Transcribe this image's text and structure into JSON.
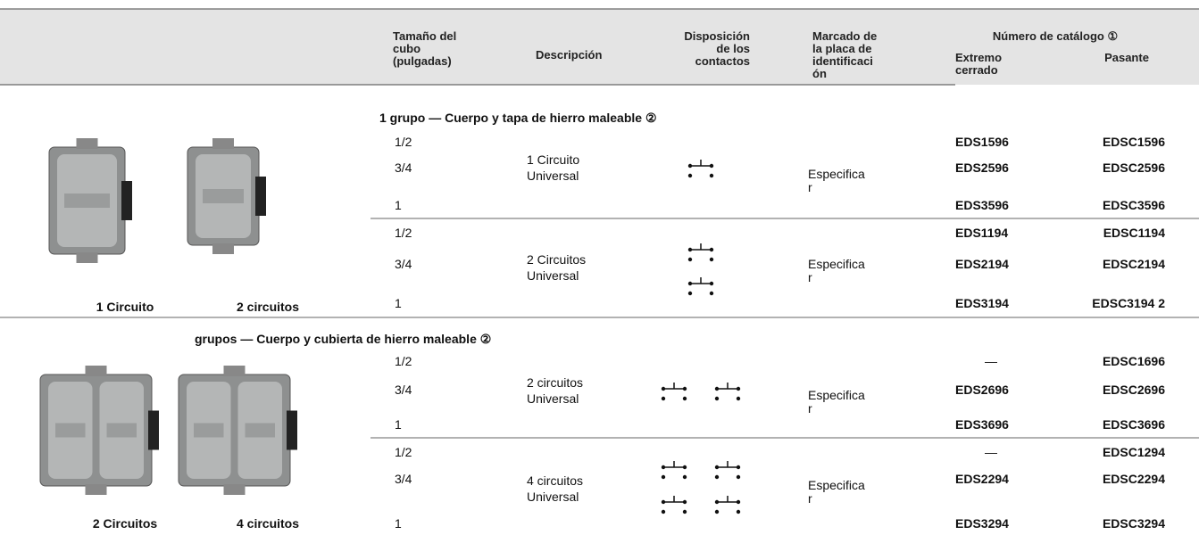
{
  "header": {
    "hub_size": [
      "Tamaño del",
      "cubo",
      "(pulgadas)"
    ],
    "description": "Descripción",
    "contacts": [
      "Disposición",
      "de los",
      "contactos"
    ],
    "marking": [
      "Marcado de",
      "la placa de",
      "identificaci",
      "ón"
    ],
    "catalog": "Número de catálogo ①",
    "closed": [
      "Extremo",
      "cerrado"
    ],
    "through": "Pasante"
  },
  "images": [
    {
      "caption": "1 Circuito"
    },
    {
      "caption": "2 circuitos"
    },
    {
      "caption": "2 Circuitos"
    },
    {
      "caption": "4 circuitos"
    }
  ],
  "groups": [
    {
      "title": "1 grupo — Cuerpo y tapa de hierro maleable ②",
      "sections": [
        {
          "description": [
            "1 Circuito",
            "Universal"
          ],
          "marking": [
            "Especifica",
            "r"
          ],
          "rows": [
            {
              "size": "1/2",
              "closed": "EDS1596",
              "through": "EDSC1596"
            },
            {
              "size": "3/4",
              "closed": "EDS2596",
              "through": "EDSC2596"
            },
            {
              "size": "1",
              "closed": "EDS3596",
              "through": "EDSC3596"
            }
          ]
        },
        {
          "description": [
            "2 Circuitos",
            "Universal"
          ],
          "marking": [
            "Especifica",
            "r"
          ],
          "rows": [
            {
              "size": "1/2",
              "closed": "EDS1194",
              "through": "EDSC1194"
            },
            {
              "size": "3/4",
              "closed": "EDS2194",
              "through": "EDSC2194"
            },
            {
              "size": "1",
              "closed": "EDS3194",
              "through": "EDSC3194 2"
            }
          ]
        }
      ]
    },
    {
      "title": "grupos — Cuerpo y cubierta de hierro maleable ②",
      "sections": [
        {
          "description": [
            "2 circuitos",
            "Universal"
          ],
          "marking": [
            "Especifica",
            "r"
          ],
          "rows": [
            {
              "size": "1/2",
              "closed": "—",
              "through": "EDSC1696"
            },
            {
              "size": "3/4",
              "closed": "EDS2696",
              "through": "EDSC2696"
            },
            {
              "size": "1",
              "closed": "EDS3696",
              "through": "EDSC3696"
            }
          ]
        },
        {
          "description": [
            "4 circuitos",
            "Universal"
          ],
          "marking": [
            "Especifica",
            "r"
          ],
          "rows": [
            {
              "size": "1/2",
              "closed": "—",
              "through": "EDSC1294"
            },
            {
              "size": "3/4",
              "closed": "EDS2294",
              "through": "EDSC2294"
            },
            {
              "size": "1",
              "closed": "EDS3294",
              "through": "EDSC3294"
            }
          ]
        }
      ]
    }
  ]
}
